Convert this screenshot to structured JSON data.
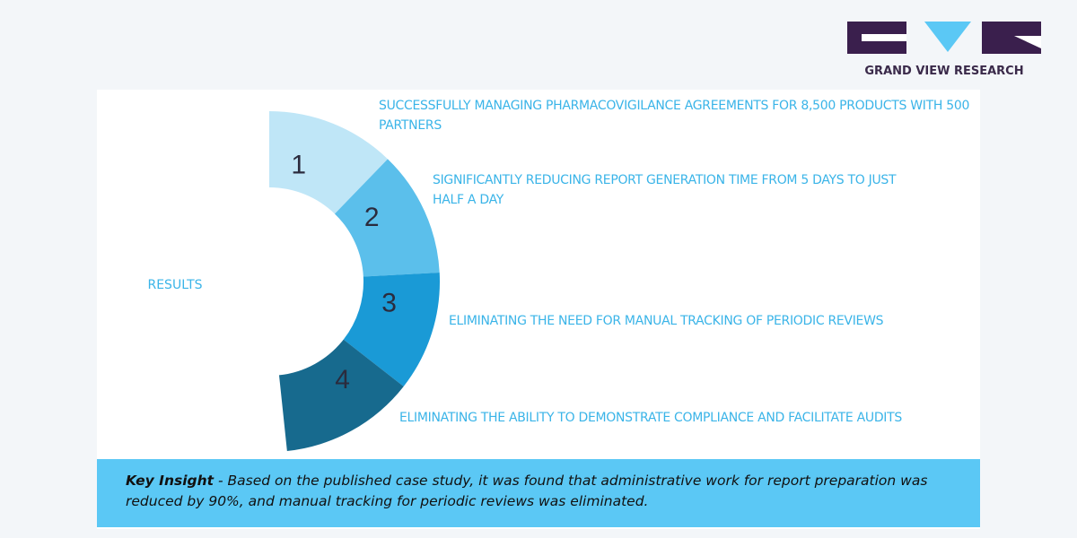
{
  "logo": {
    "text": "GRAND VIEW RESEARCH"
  },
  "center_label": "RESULTS",
  "items": [
    {
      "number": "1",
      "text": "SUCCESSFULLY MANAGING PHARMACOVIGILANCE AGREEMENTS FOR 8,500 PRODUCTS WITH 500 PARTNERS"
    },
    {
      "number": "2",
      "text": "SIGNIFICANTLY REDUCING REPORT GENERATION TIME FROM 5 DAYS TO JUST HALF A DAY"
    },
    {
      "number": "3",
      "text": "ELIMINATING THE NEED FOR MANUAL TRACKING OF PERIODIC REVIEWS"
    },
    {
      "number": "4",
      "text": "ELIMINATING THE ABILITY TO DEMONSTRATE COMPLIANCE AND FACILITATE AUDITS"
    }
  ],
  "insight": {
    "label": "Key Insight",
    "text": " - Based on the published case study, it was found that administrative work for report preparation was reduced by 90%, and manual tracking for periodic reviews was eliminated."
  }
}
